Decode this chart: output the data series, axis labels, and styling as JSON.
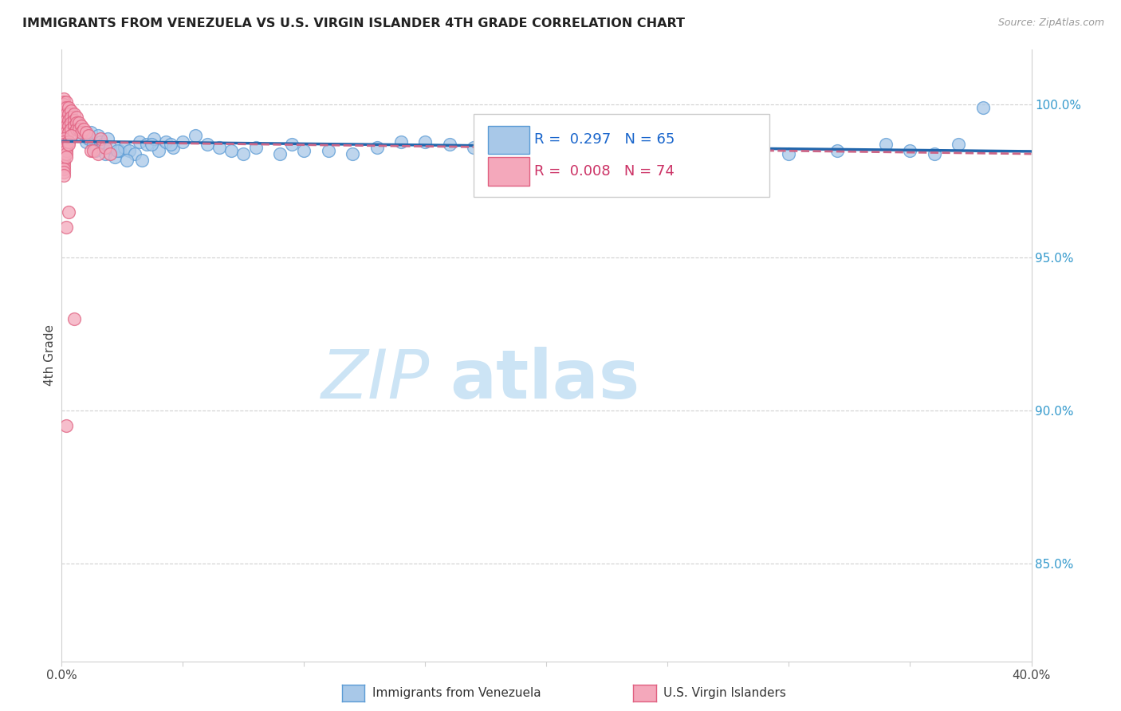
{
  "title": "IMMIGRANTS FROM VENEZUELA VS U.S. VIRGIN ISLANDER 4TH GRADE CORRELATION CHART",
  "source": "Source: ZipAtlas.com",
  "ylabel": "4th Grade",
  "xlim": [
    0.0,
    0.4
  ],
  "ylim": [
    0.818,
    1.018
  ],
  "yticks": [
    0.85,
    0.9,
    0.95,
    1.0
  ],
  "ytick_labels": [
    "85.0%",
    "90.0%",
    "95.0%",
    "100.0%"
  ],
  "blue_R": 0.297,
  "blue_N": 65,
  "pink_R": 0.008,
  "pink_N": 74,
  "blue_dot_color": "#a8c8e8",
  "blue_edge_color": "#5b9bd5",
  "blue_line_color": "#2166ac",
  "pink_dot_color": "#f4a8bb",
  "pink_edge_color": "#e06080",
  "pink_line_color": "#cc6688",
  "legend_label_blue": "Immigrants from Venezuela",
  "legend_label_pink": "U.S. Virgin Islanders",
  "watermark": "ZIPatlas",
  "watermark_color": "#cce4f5",
  "blue_dots_x": [
    0.001,
    0.002,
    0.003,
    0.004,
    0.005,
    0.006,
    0.007,
    0.008,
    0.009,
    0.01,
    0.011,
    0.012,
    0.013,
    0.014,
    0.015,
    0.016,
    0.017,
    0.018,
    0.019,
    0.02,
    0.022,
    0.024,
    0.026,
    0.028,
    0.03,
    0.032,
    0.035,
    0.038,
    0.04,
    0.043,
    0.046,
    0.05,
    0.055,
    0.06,
    0.065,
    0.07,
    0.075,
    0.08,
    0.09,
    0.095,
    0.1,
    0.11,
    0.12,
    0.13,
    0.14,
    0.15,
    0.16,
    0.17,
    0.19,
    0.2,
    0.22,
    0.25,
    0.27,
    0.3,
    0.32,
    0.34,
    0.35,
    0.36,
    0.37,
    0.38,
    0.023,
    0.027,
    0.033,
    0.037,
    0.045
  ],
  "blue_dots_y": [
    0.998,
    0.998,
    0.995,
    0.997,
    0.993,
    0.994,
    0.992,
    0.99,
    0.991,
    0.988,
    0.989,
    0.991,
    0.987,
    0.985,
    0.99,
    0.988,
    0.987,
    0.984,
    0.989,
    0.986,
    0.983,
    0.985,
    0.986,
    0.985,
    0.984,
    0.988,
    0.987,
    0.989,
    0.985,
    0.988,
    0.986,
    0.988,
    0.99,
    0.987,
    0.986,
    0.985,
    0.984,
    0.986,
    0.984,
    0.987,
    0.985,
    0.985,
    0.984,
    0.986,
    0.988,
    0.988,
    0.987,
    0.986,
    0.985,
    0.985,
    0.978,
    0.985,
    0.984,
    0.984,
    0.985,
    0.987,
    0.985,
    0.984,
    0.987,
    0.999,
    0.985,
    0.982,
    0.982,
    0.987,
    0.987
  ],
  "pink_dots_x": [
    0.001,
    0.001,
    0.001,
    0.001,
    0.001,
    0.001,
    0.001,
    0.001,
    0.001,
    0.001,
    0.001,
    0.001,
    0.001,
    0.002,
    0.002,
    0.002,
    0.002,
    0.002,
    0.002,
    0.002,
    0.002,
    0.003,
    0.003,
    0.003,
    0.003,
    0.003,
    0.004,
    0.004,
    0.004,
    0.004,
    0.005,
    0.005,
    0.005,
    0.005,
    0.006,
    0.006,
    0.006,
    0.007,
    0.007,
    0.008,
    0.008,
    0.009,
    0.01,
    0.011,
    0.012,
    0.013,
    0.015,
    0.016,
    0.018,
    0.02,
    0.001,
    0.001,
    0.001,
    0.001,
    0.001,
    0.001,
    0.001,
    0.001,
    0.001,
    0.001,
    0.002,
    0.002,
    0.002,
    0.002,
    0.001,
    0.001,
    0.001,
    0.003,
    0.003,
    0.004,
    0.005,
    0.002,
    0.003,
    0.002
  ],
  "pink_dots_y": [
    1.002,
    1.001,
    1.0,
    0.999,
    0.998,
    0.997,
    0.996,
    0.995,
    0.994,
    0.993,
    0.992,
    0.991,
    0.99,
    1.001,
    0.999,
    0.997,
    0.995,
    0.993,
    0.991,
    0.989,
    0.987,
    0.999,
    0.997,
    0.995,
    0.993,
    0.991,
    0.998,
    0.996,
    0.994,
    0.992,
    0.997,
    0.995,
    0.993,
    0.991,
    0.996,
    0.994,
    0.992,
    0.994,
    0.992,
    0.993,
    0.991,
    0.992,
    0.991,
    0.99,
    0.985,
    0.985,
    0.984,
    0.989,
    0.986,
    0.984,
    0.989,
    0.988,
    0.987,
    0.986,
    0.985,
    0.984,
    0.983,
    0.982,
    0.981,
    0.98,
    0.986,
    0.985,
    0.984,
    0.983,
    0.979,
    0.978,
    0.977,
    0.988,
    0.987,
    0.99,
    0.93,
    0.96,
    0.965,
    0.895
  ]
}
